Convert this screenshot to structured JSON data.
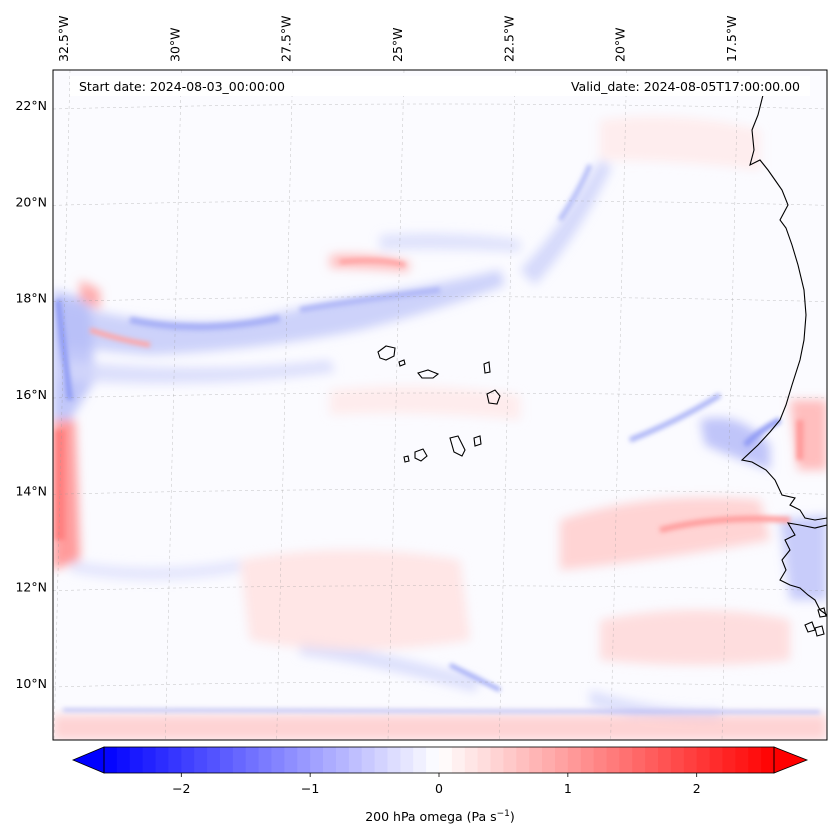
{
  "header": {
    "start_date": "Start date: 2024-08-03_00:00:00",
    "valid_date": "Valid_date: 2024-08-05T17:00:00.00"
  },
  "axes": {
    "lon_labels": [
      "32.5°W",
      "30°W",
      "27.5°W",
      "25°W",
      "22.5°W",
      "20°W",
      "17.5°W"
    ],
    "lon_values": [
      -32.5,
      -30,
      -27.5,
      -25,
      -22.5,
      -20,
      -17.5
    ],
    "lat_labels": [
      "22°N",
      "20°N",
      "18°N",
      "16°N",
      "14°N",
      "12°N",
      "10°N"
    ],
    "lat_values": [
      22,
      20,
      18,
      16,
      14,
      12,
      10
    ]
  },
  "colorbar": {
    "label_prefix": "200 hPa omega (Pa s",
    "label_exp": "−1",
    "label_suffix": ")",
    "ticks": [
      "−2",
      "−1",
      "0",
      "1",
      "2"
    ],
    "tick_values": [
      -2,
      -1,
      0,
      1,
      2
    ],
    "range": [
      -2.6,
      2.6
    ],
    "colors": {
      "min": "#0000ff",
      "mid": "#ffffff",
      "max": "#ff0000"
    }
  },
  "chart_data": {
    "type": "heatmap",
    "title": "",
    "variable": "200 hPa omega (Pa s−1)",
    "extent_lon": [
      -32.8,
      -15.5
    ],
    "extent_lat": [
      8.9,
      22.8
    ],
    "vmin": -2.6,
    "vmax": 2.6,
    "coastline_color": "#000000",
    "gridlines": true
  }
}
